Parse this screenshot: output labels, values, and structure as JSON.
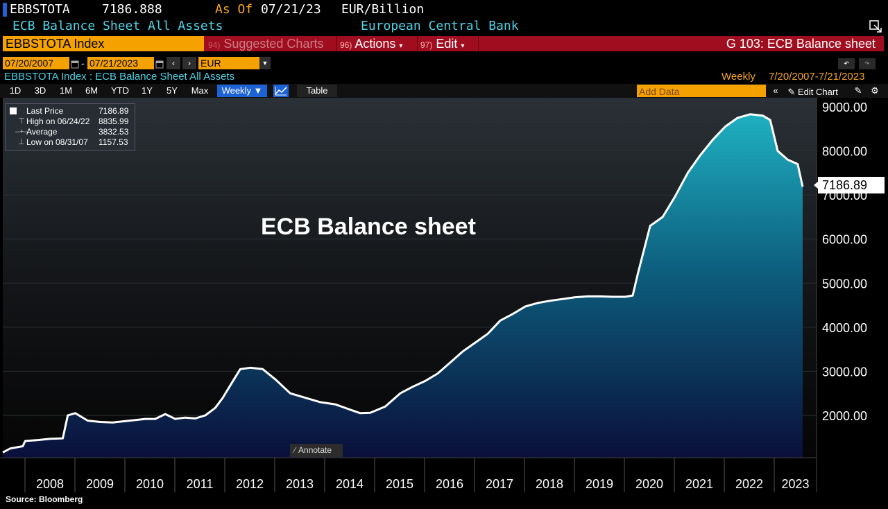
{
  "header": {
    "ticker": "EBBSTOTA",
    "price": "7186.888",
    "as_of_label": "As Of",
    "as_of_date": "07/21/23",
    "unit": "EUR/Billion",
    "description": "ECB Balance Sheet All Assets",
    "source_org": "European Central Bank"
  },
  "command_bar": {
    "security": "EBBSTOTA Index",
    "suggested_num": "94)",
    "suggested_label": "Suggested Charts",
    "actions_num": "96)",
    "actions_label": "Actions",
    "edit_num": "97)",
    "edit_label": "Edit",
    "function_title": "G 103: ECB Balance sheet"
  },
  "date_row": {
    "start_date": "07/20/2007",
    "end_date": "07/21/2023",
    "currency": "EUR"
  },
  "info_row": {
    "security_desc": "EBBSTOTA Index : ECB Balance Sheet All Assets",
    "frequency": "Weekly",
    "range": "7/20/2007-7/21/2023"
  },
  "toolbar": {
    "periods": [
      "1D",
      "3D",
      "1M",
      "6M",
      "YTD",
      "1Y",
      "5Y",
      "Max"
    ],
    "frequency_dropdown": "Weekly ▼",
    "table_label": "Table",
    "add_data_placeholder": "Add Data",
    "edit_chart_label": "Edit Chart"
  },
  "legend": {
    "last_label": "Last Price",
    "last_value": "7186.89",
    "high_label": "High on 06/24/22",
    "high_value": "8835.99",
    "avg_label": "Average",
    "avg_value": "3832.53",
    "low_label": "Low on 08/31/07",
    "low_value": "1157.53"
  },
  "annotate_label": "Annotate",
  "source_label": "Source: Bloomberg",
  "colors": {
    "orange": "#f5a100",
    "red_bar": "#a00d1e",
    "cyan_text": "#4fd3e6",
    "area_top": "#1aa3b5",
    "area_bottom": "#0a0f3a"
  },
  "chart_data": {
    "type": "area",
    "title": "ECB Balance sheet",
    "xlabel": "",
    "ylabel": "",
    "ylim": [
      1000,
      9200
    ],
    "x_tick_labels": [
      "2008",
      "2009",
      "2010",
      "2011",
      "2012",
      "2013",
      "2014",
      "2015",
      "2016",
      "2017",
      "2018",
      "2019",
      "2020",
      "2021",
      "2022",
      "2023"
    ],
    "y_tick_labels": [
      "2000.00",
      "3000.00",
      "4000.00",
      "5000.00",
      "6000.00",
      "7000.00",
      "8000.00",
      "9000.00"
    ],
    "last_value_label": "7186.89",
    "series": [
      {
        "x": [
          2007.55,
          2007.7,
          2007.95,
          2008.0,
          2008.25,
          2008.5,
          2008.75,
          2008.85,
          2009.0,
          2009.25,
          2009.5,
          2009.75,
          2010.0,
          2010.25,
          2010.4,
          2010.6,
          2010.8,
          2011.0,
          2011.2,
          2011.4,
          2011.6,
          2011.8,
          2011.95,
          2012.1,
          2012.3,
          2012.5,
          2012.75,
          2013.0,
          2013.3,
          2013.6,
          2013.9,
          2014.2,
          2014.45,
          2014.7,
          2014.9,
          2015.2,
          2015.5,
          2015.75,
          2016.0,
          2016.25,
          2016.5,
          2016.75,
          2017.0,
          2017.25,
          2017.5,
          2017.75,
          2018.0,
          2018.25,
          2018.5,
          2018.75,
          2019.0,
          2019.25,
          2019.5,
          2019.75,
          2020.0,
          2020.15,
          2020.25,
          2020.5,
          2020.75,
          2021.0,
          2021.25,
          2021.5,
          2021.75,
          2022.0,
          2022.25,
          2022.5,
          2022.75,
          2022.9,
          2023.05,
          2023.25,
          2023.45,
          2023.55
        ],
        "values": [
          1160,
          1250,
          1300,
          1420,
          1440,
          1470,
          1480,
          2000,
          2050,
          1880,
          1850,
          1840,
          1870,
          1900,
          1920,
          1920,
          2030,
          1920,
          1950,
          1930,
          2000,
          2170,
          2400,
          2680,
          3050,
          3080,
          3050,
          2820,
          2500,
          2400,
          2300,
          2250,
          2150,
          2050,
          2060,
          2200,
          2500,
          2650,
          2780,
          2950,
          3200,
          3450,
          3650,
          3850,
          4150,
          4300,
          4470,
          4550,
          4600,
          4640,
          4680,
          4700,
          4700,
          4690,
          4690,
          4720,
          5200,
          6300,
          6500,
          6970,
          7500,
          7900,
          8250,
          8550,
          8750,
          8830,
          8800,
          8700,
          8000,
          7800,
          7700,
          7186.89
        ]
      }
    ]
  }
}
